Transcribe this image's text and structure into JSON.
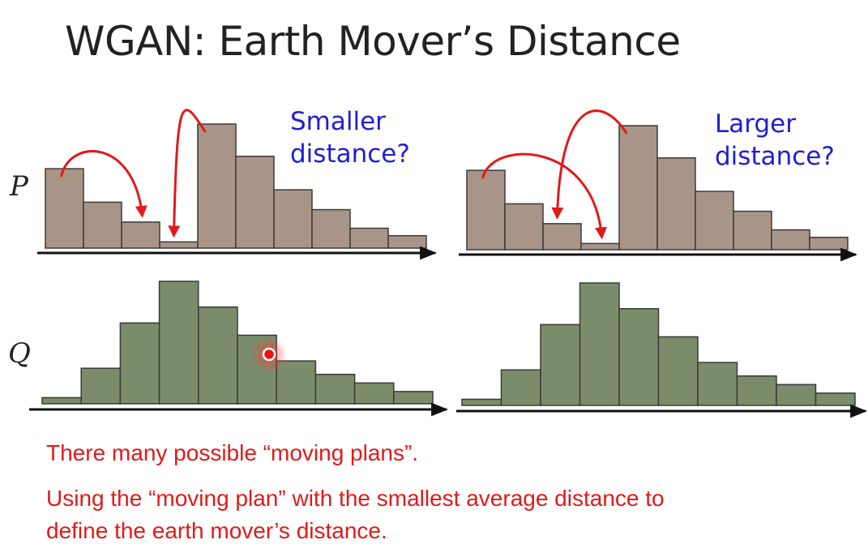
{
  "title": "WGAN: Earth Mover’s Distance",
  "row_labels": {
    "p": "P",
    "q": "Q"
  },
  "left_panel": {
    "label_line1": "Smaller",
    "label_line2": "distance?"
  },
  "right_panel": {
    "label_line1": "Larger",
    "label_line2": "distance?"
  },
  "notes": {
    "line1": "There many possible “moving plans”.",
    "line2": "Using the “moving plan” with the smallest average distance to",
    "line3": "define the earth mover’s distance."
  },
  "colors": {
    "p_fill": "#a99587",
    "q_fill": "#7b8c6a",
    "bar_stroke": "#3a3a3a",
    "arrow": "#e01a1a",
    "label_blue": "#1f1fd1",
    "note_red": "#e01a1a"
  },
  "histograms": {
    "p_left": [
      0.64,
      0.37,
      0.21,
      0.05,
      1.0,
      0.74,
      0.47,
      0.31,
      0.16,
      0.1
    ],
    "p_right": [
      0.64,
      0.37,
      0.21,
      0.05,
      1.0,
      0.74,
      0.47,
      0.31,
      0.16,
      0.1
    ],
    "q_left": [
      0.05,
      0.29,
      0.66,
      1.0,
      0.79,
      0.56,
      0.35,
      0.24,
      0.17,
      0.1
    ],
    "q_right": [
      0.05,
      0.29,
      0.66,
      1.0,
      0.79,
      0.56,
      0.35,
      0.24,
      0.17,
      0.1
    ]
  },
  "moves": {
    "left": [
      {
        "from_bar": 0,
        "to_bar": 2
      },
      {
        "from_bar": 4,
        "to_bar": 3
      }
    ],
    "right": [
      {
        "from_bar": 0,
        "to_bar": 3
      },
      {
        "from_bar": 4,
        "to_bar": 2
      }
    ]
  }
}
